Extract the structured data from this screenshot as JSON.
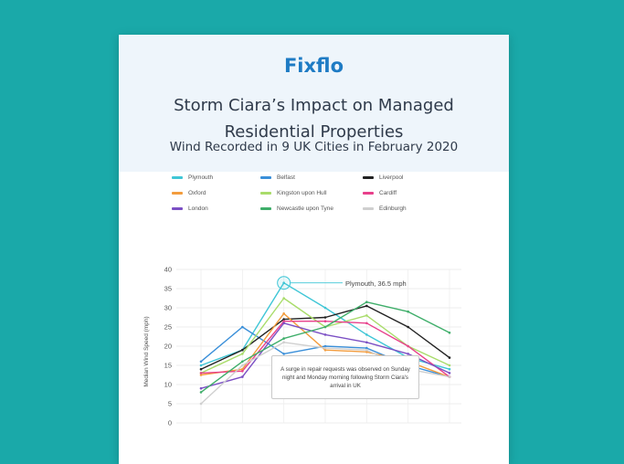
{
  "brand": "Fixflo",
  "report_title": "Storm Ciara’s Impact on Managed Residential Properties",
  "chart_title": "Wind Recorded in 9 UK Cities in February 2020",
  "annotation_text": "A surge in repair requests was observed on Sunday night and Monday morning following Storm Ciara's arrival in UK",
  "callout_text": "Plymouth, 36.5 mph",
  "chart_data": {
    "type": "line",
    "ylabel": "Median Wind Speed (mph)",
    "xlabel": "",
    "ylim": [
      0,
      40
    ],
    "yticks": [
      0,
      5,
      10,
      15,
      20,
      25,
      30,
      35,
      40
    ],
    "grid": true,
    "legend_position": "top",
    "x": [
      0,
      1,
      2,
      3,
      4,
      5,
      6
    ],
    "series": [
      {
        "name": "Plymouth",
        "color": "#3fc6d6",
        "values": [
          15,
          19,
          36.5,
          30,
          23,
          17,
          14
        ]
      },
      {
        "name": "Belfast",
        "color": "#3a8fd9",
        "values": [
          16,
          25,
          18,
          20,
          19.5,
          15,
          12
        ]
      },
      {
        "name": "Liverpool",
        "color": "#222222",
        "values": [
          14,
          19,
          27,
          27.5,
          30.5,
          25,
          17
        ]
      },
      {
        "name": "Oxford",
        "color": "#f39c3d",
        "values": [
          12.5,
          14,
          28.5,
          19,
          18.5,
          16,
          12
        ]
      },
      {
        "name": "Kingston upon Hull",
        "color": "#a9dc6a",
        "values": [
          13,
          18,
          32.5,
          25,
          28,
          20,
          15
        ]
      },
      {
        "name": "Cardiff",
        "color": "#e8408b",
        "values": [
          13,
          13.5,
          26.5,
          26.5,
          26,
          20,
          12
        ]
      },
      {
        "name": "London",
        "color": "#7b4fc4",
        "values": [
          9,
          12,
          26,
          23,
          21,
          18,
          13
        ]
      },
      {
        "name": "Newcastle upon Tyne",
        "color": "#3fae6a",
        "values": [
          8,
          16,
          22,
          25,
          31.5,
          29,
          23.5
        ]
      },
      {
        "name": "Edinburgh",
        "color": "#cfcfcf",
        "values": [
          5,
          15,
          21,
          19.5,
          19,
          14,
          12
        ]
      }
    ],
    "highlight": {
      "series": "Plymouth",
      "index": 2,
      "label": "Plymouth, 36.5 mph"
    }
  }
}
